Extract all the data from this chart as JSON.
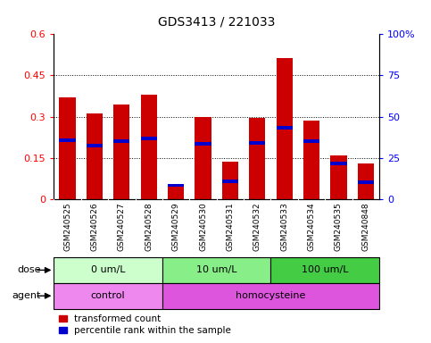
{
  "title": "GDS3413 / 221033",
  "samples": [
    "GSM240525",
    "GSM240526",
    "GSM240527",
    "GSM240528",
    "GSM240529",
    "GSM240530",
    "GSM240531",
    "GSM240532",
    "GSM240533",
    "GSM240534",
    "GSM240535",
    "GSM240848"
  ],
  "red_values": [
    0.37,
    0.31,
    0.345,
    0.38,
    0.055,
    0.3,
    0.135,
    0.295,
    0.515,
    0.285,
    0.16,
    0.13
  ],
  "blue_values": [
    0.215,
    0.195,
    0.21,
    0.22,
    0.05,
    0.2,
    0.065,
    0.205,
    0.26,
    0.21,
    0.13,
    0.06
  ],
  "ylim_left": [
    0,
    0.6
  ],
  "ylim_right": [
    0,
    100
  ],
  "yticks_left": [
    0,
    0.15,
    0.3,
    0.45,
    0.6
  ],
  "yticks_right": [
    0,
    25,
    50,
    75,
    100
  ],
  "ytick_labels_left": [
    "0",
    "0.15",
    "0.3",
    "0.45",
    "0.6"
  ],
  "ytick_labels_right": [
    "0",
    "25",
    "50",
    "75",
    "100%"
  ],
  "dose_groups": [
    {
      "label": "0 um/L",
      "start": 0,
      "end": 4,
      "color": "#ccffcc"
    },
    {
      "label": "10 um/L",
      "start": 4,
      "end": 8,
      "color": "#88ee88"
    },
    {
      "label": "100 um/L",
      "start": 8,
      "end": 12,
      "color": "#44cc44"
    }
  ],
  "agent_groups": [
    {
      "label": "control",
      "start": 0,
      "end": 4,
      "color": "#ee88ee"
    },
    {
      "label": "homocysteine",
      "start": 4,
      "end": 12,
      "color": "#dd55dd"
    }
  ],
  "legend_red_label": "transformed count",
  "legend_blue_label": "percentile rank within the sample",
  "bar_color": "#cc0000",
  "blue_color": "#0000cc",
  "xtick_bg_color": "#c8c8c8",
  "dose_label": "dose",
  "agent_label": "agent"
}
